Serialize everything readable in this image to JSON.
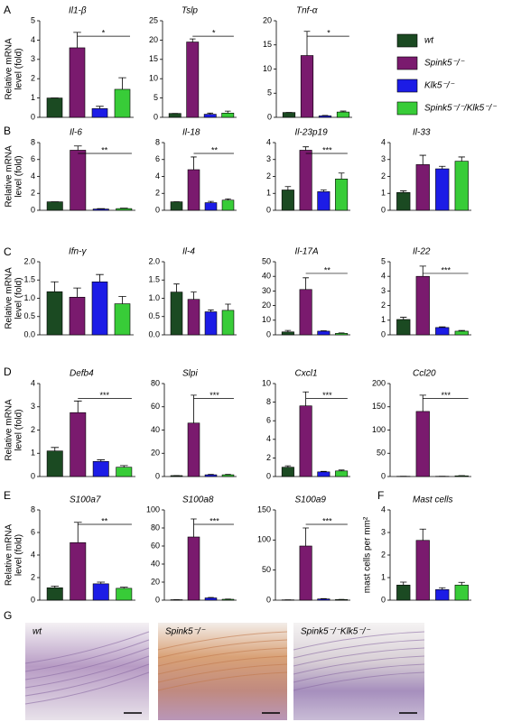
{
  "panels": [
    "A",
    "B",
    "C",
    "D",
    "E",
    "F",
    "G"
  ],
  "y_label": [
    "Relative mRNA",
    "level (fold)"
  ],
  "legend": [
    {
      "name": "wt",
      "color": "#1b4a22"
    },
    {
      "name": "Spink5⁻/⁻",
      "color": "#7a1a6e"
    },
    {
      "name": "Klk5⁻/⁻",
      "color": "#1c1ce6"
    },
    {
      "name": "Spink5⁻/⁻/Klk5⁻/⁻",
      "color": "#38cc38"
    }
  ],
  "chart_data": [
    {
      "type": "bar",
      "title": "Il1-β",
      "values": [
        1,
        3.6,
        0.45,
        1.45
      ],
      "errors": [
        0,
        0.8,
        0.12,
        0.6
      ],
      "ylim": [
        0,
        5
      ],
      "yticks": [
        0,
        1,
        2,
        3,
        4,
        5
      ],
      "annotation": "*"
    },
    {
      "type": "bar",
      "title": "Tslp",
      "values": [
        1,
        19.5,
        0.8,
        1.1
      ],
      "errors": [
        0,
        0.8,
        0.3,
        0.5
      ],
      "ylim": [
        0,
        25
      ],
      "yticks": [
        0,
        5,
        10,
        15,
        20,
        25
      ],
      "annotation": "*"
    },
    {
      "type": "bar",
      "title": "Tnf-α",
      "values": [
        1,
        12.8,
        0.3,
        1.1
      ],
      "errors": [
        0,
        5,
        0.1,
        0.2
      ],
      "ylim": [
        0,
        20
      ],
      "yticks": [
        0,
        5,
        10,
        15,
        20
      ],
      "annotation": "*"
    },
    {
      "type": "bar",
      "title": "Il-6",
      "values": [
        1,
        7.1,
        0.15,
        0.2
      ],
      "errors": [
        0,
        0.5,
        0.05,
        0.05
      ],
      "ylim": [
        0,
        8
      ],
      "yticks": [
        0,
        2,
        4,
        6,
        8
      ],
      "annotation": "**"
    },
    {
      "type": "bar",
      "title": "Il-18",
      "values": [
        1,
        4.8,
        0.9,
        1.2
      ],
      "errors": [
        0,
        1.5,
        0.15,
        0.15
      ],
      "ylim": [
        0,
        8
      ],
      "yticks": [
        0,
        2,
        4,
        6,
        8
      ],
      "annotation": "**"
    },
    {
      "type": "bar",
      "title": "Il-23p19",
      "values": [
        1.2,
        3.55,
        1.1,
        1.85
      ],
      "errors": [
        0.2,
        0.2,
        0.1,
        0.35
      ],
      "ylim": [
        0,
        4
      ],
      "yticks": [
        0,
        1,
        2,
        3,
        4
      ],
      "annotation": "***"
    },
    {
      "type": "bar",
      "title": "Il-33",
      "values": [
        1.05,
        2.7,
        2.45,
        2.9
      ],
      "errors": [
        0.1,
        0.55,
        0.15,
        0.25
      ],
      "ylim": [
        0,
        4
      ],
      "yticks": [
        0,
        1,
        2,
        3,
        4
      ]
    },
    {
      "type": "bar",
      "title": "Ifn-γ",
      "values": [
        1.18,
        1.03,
        1.45,
        0.85
      ],
      "errors": [
        0.27,
        0.25,
        0.2,
        0.2
      ],
      "ylim": [
        0,
        2
      ],
      "yticks": [
        {
          "value": 0,
          "label": "0.0"
        },
        0.5,
        {
          "value": 1,
          "label": "1.0"
        },
        1.5,
        {
          "value": 2,
          "label": "2.0"
        }
      ]
    },
    {
      "type": "bar",
      "title": "Il-4",
      "values": [
        1.17,
        0.97,
        0.63,
        0.67
      ],
      "errors": [
        0.22,
        0.2,
        0.05,
        0.17
      ],
      "ylim": [
        0,
        2
      ],
      "yticks": [
        {
          "value": 0,
          "label": "0.0"
        },
        0.5,
        {
          "value": 1,
          "label": "1.0"
        },
        1.5,
        {
          "value": 2,
          "label": "2.0"
        }
      ]
    },
    {
      "type": "bar",
      "title": "Il-17A",
      "values": [
        2,
        31,
        2.5,
        1
      ],
      "errors": [
        1,
        8,
        0.3,
        0.3
      ],
      "ylim": [
        0,
        50
      ],
      "yticks": [
        0,
        10,
        20,
        30,
        40,
        50
      ],
      "annotation": "**"
    },
    {
      "type": "bar",
      "title": "Il-22",
      "values": [
        1.05,
        4,
        0.5,
        0.25
      ],
      "errors": [
        0.15,
        0.7,
        0.05,
        0.05
      ],
      "ylim": [
        0,
        5
      ],
      "yticks": [
        0,
        1,
        2,
        3,
        4,
        5
      ],
      "annotation": "***"
    },
    {
      "type": "bar",
      "title": "Defb4",
      "values": [
        1.1,
        2.75,
        0.65,
        0.4
      ],
      "errors": [
        0.15,
        0.5,
        0.07,
        0.07
      ],
      "ylim": [
        0,
        4
      ],
      "yticks": [
        0,
        1,
        2,
        3,
        4
      ],
      "annotation": "***"
    },
    {
      "type": "bar",
      "title": "Slpi",
      "values": [
        0.8,
        46,
        1.5,
        1.5
      ],
      "errors": [
        0,
        24,
        0.3,
        0.3
      ],
      "ylim": [
        0,
        80
      ],
      "yticks": [
        0,
        20,
        40,
        60,
        80
      ],
      "annotation": "***"
    },
    {
      "type": "bar",
      "title": "Cxcl1",
      "values": [
        1,
        7.6,
        0.5,
        0.6
      ],
      "errors": [
        0.15,
        1.5,
        0.05,
        0.1
      ],
      "ylim": [
        0,
        10
      ],
      "yticks": [
        0,
        2,
        4,
        6,
        8,
        10
      ],
      "annotation": "***"
    },
    {
      "type": "bar",
      "title": "Ccl20",
      "values": [
        0.5,
        140,
        0.5,
        1.5
      ],
      "errors": [
        0,
        35,
        0,
        0.5
      ],
      "ylim": [
        0,
        200
      ],
      "yticks": [
        0,
        50,
        100,
        150,
        200
      ],
      "annotation": "***"
    },
    {
      "type": "bar",
      "title": "S100a7",
      "values": [
        1.1,
        5.1,
        1.45,
        1.05
      ],
      "errors": [
        0.15,
        1.8,
        0.15,
        0.1
      ],
      "ylim": [
        0,
        8
      ],
      "yticks": [
        0,
        2,
        4,
        6,
        8
      ],
      "annotation": "**"
    },
    {
      "type": "bar",
      "title": "S100a8",
      "values": [
        0.5,
        70,
        2.5,
        1
      ],
      "errors": [
        0,
        20,
        0.5,
        0.2
      ],
      "ylim": [
        0,
        100
      ],
      "yticks": [
        0,
        20,
        40,
        60,
        80,
        100
      ],
      "annotation": "***"
    },
    {
      "type": "bar",
      "title": "S100a9",
      "values": [
        0.5,
        90,
        2,
        1
      ],
      "errors": [
        0,
        30,
        0.5,
        0.3
      ],
      "ylim": [
        0,
        150
      ],
      "yticks": [
        0,
        50,
        100,
        150
      ],
      "annotation": "***"
    },
    {
      "type": "bar",
      "title": "Mast cells",
      "y_label": "mast cells per mm²",
      "values": [
        0.67,
        2.65,
        0.47,
        0.67
      ],
      "errors": [
        0.13,
        0.5,
        0.08,
        0.12
      ],
      "ylim": [
        0,
        4
      ],
      "yticks": [
        0,
        1,
        2,
        3,
        4
      ]
    }
  ],
  "images": [
    {
      "label": "wt"
    },
    {
      "label": "Spink5⁻/⁻"
    },
    {
      "label": "Spink5⁻/⁻Klk5⁻/⁻"
    }
  ]
}
